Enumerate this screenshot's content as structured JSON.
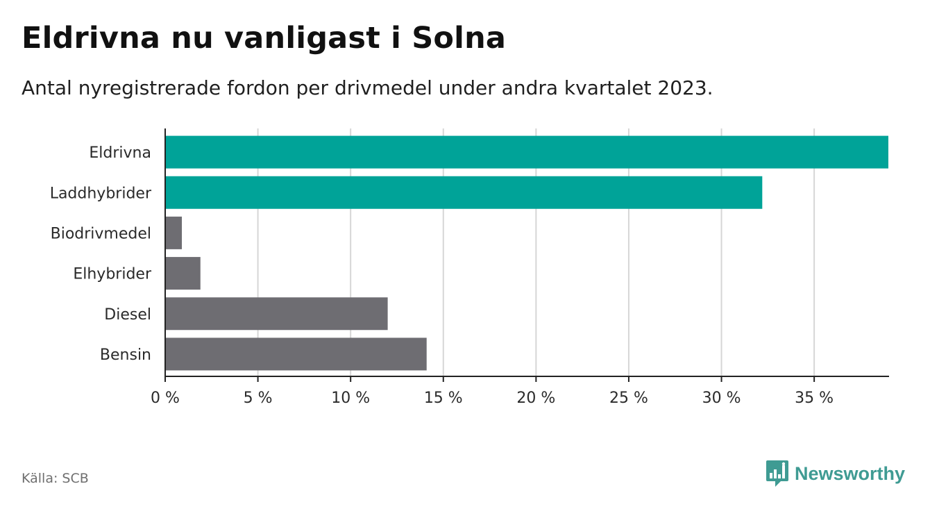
{
  "header": {
    "title": "Eldrivna nu vanligast i Solna",
    "subtitle": "Antal nyregistrerade fordon per drivmedel under andra kvartalet 2023."
  },
  "footer": {
    "source": "Källa: SCB",
    "brand": "Newsworthy"
  },
  "colors": {
    "highlight": "#00a398",
    "default": "#6e6d72",
    "grid": "#d6d6d6",
    "axis": "#222222",
    "brand": "#3f9b93"
  },
  "chart_data": {
    "type": "bar",
    "orientation": "horizontal",
    "title": "Eldrivna nu vanligast i Solna",
    "subtitle": "Antal nyregistrerade fordon per drivmedel under andra kvartalet 2023.",
    "xlabel": "",
    "ylabel": "",
    "xlim": [
      0,
      39
    ],
    "grid": true,
    "unit": "%",
    "categories": [
      "Eldrivna",
      "Laddhybrider",
      "Biodrivmedel",
      "Elhybrider",
      "Diesel",
      "Bensin"
    ],
    "values": [
      39.0,
      32.2,
      0.9,
      1.9,
      12.0,
      14.1
    ],
    "highlighted": [
      true,
      true,
      false,
      false,
      false,
      false
    ],
    "ticks": [
      0,
      5,
      10,
      15,
      20,
      25,
      30,
      35
    ],
    "tick_labels": [
      "0 %",
      "5 %",
      "10 %",
      "15 %",
      "20 %",
      "25 %",
      "30 %",
      "35 %"
    ]
  }
}
